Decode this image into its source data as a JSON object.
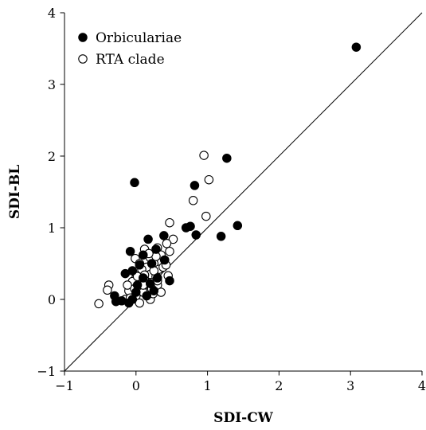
{
  "chart_data": {
    "type": "scatter",
    "xlabel": "SDI-CW",
    "ylabel": "SDI-BL",
    "xlim": [
      -1,
      4
    ],
    "ylim": [
      -1,
      4
    ],
    "xticks": [
      -1,
      0,
      1,
      2,
      3,
      4
    ],
    "yticks": [
      -1,
      0,
      1,
      2,
      3,
      4
    ],
    "xtick_labels": [
      "−1",
      "0",
      "1",
      "2",
      "3",
      "4"
    ],
    "ytick_labels": [
      "−1",
      "0",
      "1",
      "2",
      "3",
      "4"
    ],
    "reference_line": {
      "type": "identity",
      "from": [
        -1,
        -1
      ],
      "to": [
        4,
        4
      ]
    },
    "legend": {
      "placement": "top-left"
    },
    "grid": false,
    "series": [
      {
        "name": "Orbiculariae",
        "marker": "filled-circle",
        "color": "#000000",
        "points": [
          [
            3.08,
            3.52
          ],
          [
            1.27,
            1.97
          ],
          [
            0.82,
            1.59
          ],
          [
            -0.02,
            1.63
          ],
          [
            1.42,
            1.03
          ],
          [
            1.19,
            0.88
          ],
          [
            0.84,
            0.9
          ],
          [
            0.76,
            1.02
          ],
          [
            0.7,
            1.0
          ],
          [
            0.39,
            0.89
          ],
          [
            0.17,
            0.84
          ],
          [
            -0.08,
            0.67
          ],
          [
            0.28,
            0.7
          ],
          [
            0.1,
            0.62
          ],
          [
            0.4,
            0.55
          ],
          [
            0.05,
            0.48
          ],
          [
            0.22,
            0.5
          ],
          [
            0.47,
            0.26
          ],
          [
            0.3,
            0.3
          ],
          [
            -0.15,
            0.36
          ],
          [
            -0.05,
            0.4
          ],
          [
            0.1,
            0.3
          ],
          [
            0.2,
            0.22
          ],
          [
            0.0,
            0.1
          ],
          [
            -0.3,
            0.05
          ],
          [
            -0.28,
            -0.03
          ],
          [
            -0.2,
            -0.02
          ],
          [
            -0.1,
            -0.05
          ],
          [
            -0.05,
            0.0
          ],
          [
            0.15,
            0.05
          ],
          [
            0.25,
            0.12
          ],
          [
            0.02,
            0.2
          ]
        ]
      },
      {
        "name": "RTA clade",
        "marker": "open-circle",
        "color": "#000000",
        "points": [
          [
            0.95,
            2.01
          ],
          [
            1.02,
            1.67
          ],
          [
            0.8,
            1.38
          ],
          [
            0.98,
            1.16
          ],
          [
            0.47,
            1.07
          ],
          [
            0.52,
            0.84
          ],
          [
            0.43,
            0.78
          ],
          [
            0.47,
            0.67
          ],
          [
            0.3,
            0.72
          ],
          [
            0.35,
            0.62
          ],
          [
            0.12,
            0.7
          ],
          [
            0.2,
            0.58
          ],
          [
            0.4,
            0.55
          ],
          [
            -0.01,
            0.57
          ],
          [
            0.05,
            0.5
          ],
          [
            0.25,
            0.5
          ],
          [
            0.15,
            0.45
          ],
          [
            0.32,
            0.42
          ],
          [
            0.08,
            0.38
          ],
          [
            0.2,
            0.35
          ],
          [
            0.28,
            0.32
          ],
          [
            0.45,
            0.33
          ],
          [
            0.0,
            0.3
          ],
          [
            0.12,
            0.28
          ],
          [
            -0.05,
            0.25
          ],
          [
            0.18,
            0.22
          ],
          [
            0.3,
            0.2
          ],
          [
            0.05,
            0.18
          ],
          [
            0.22,
            0.15
          ],
          [
            -0.1,
            0.12
          ],
          [
            0.1,
            0.1
          ],
          [
            0.35,
            0.1
          ],
          [
            0.0,
            0.05
          ],
          [
            0.15,
            0.05
          ],
          [
            -0.15,
            0.0
          ],
          [
            0.05,
            -0.05
          ],
          [
            0.2,
            0.0
          ],
          [
            -0.38,
            0.2
          ],
          [
            -0.4,
            0.13
          ],
          [
            -0.52,
            -0.06
          ],
          [
            -0.08,
            0.02
          ],
          [
            0.25,
            0.4
          ],
          [
            0.38,
            0.45
          ],
          [
            0.1,
            0.2
          ],
          [
            -0.02,
            0.15
          ],
          [
            0.28,
            0.6
          ],
          [
            0.18,
            0.64
          ],
          [
            0.42,
            0.48
          ],
          [
            0.08,
            0.42
          ],
          [
            0.3,
            0.26
          ],
          [
            0.12,
            0.34
          ],
          [
            -0.12,
            0.2
          ],
          [
            0.02,
            0.32
          ],
          [
            0.24,
            0.08
          ]
        ]
      }
    ]
  }
}
